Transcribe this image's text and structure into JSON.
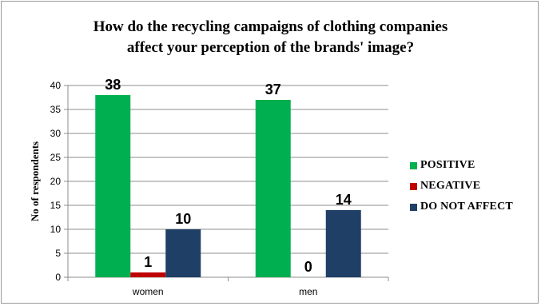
{
  "chart_data": {
    "type": "bar",
    "title_line1": "How do the recycling campaigns of clothing companies",
    "title_line2": "affect your perception of the brands' image?",
    "xlabel": "",
    "ylabel": "No of respondents",
    "categories": [
      "women",
      "men"
    ],
    "ylim": [
      0,
      40
    ],
    "yticks": [
      "0",
      "5",
      "10",
      "15",
      "20",
      "25",
      "30",
      "35",
      "40"
    ],
    "grid": true,
    "legend_position": "right",
    "series": [
      {
        "name": "POSITIVE",
        "color": "#00b050",
        "values": [
          38,
          37
        ],
        "labels": [
          "38",
          "37"
        ]
      },
      {
        "name": "NEGATIVE",
        "color": "#c00000",
        "values": [
          1,
          0
        ],
        "labels": [
          "1",
          "0"
        ]
      },
      {
        "name": "DO NOT AFFECT",
        "color": "#1f3f67",
        "values": [
          10,
          14
        ],
        "labels": [
          "10",
          "14"
        ]
      }
    ]
  }
}
